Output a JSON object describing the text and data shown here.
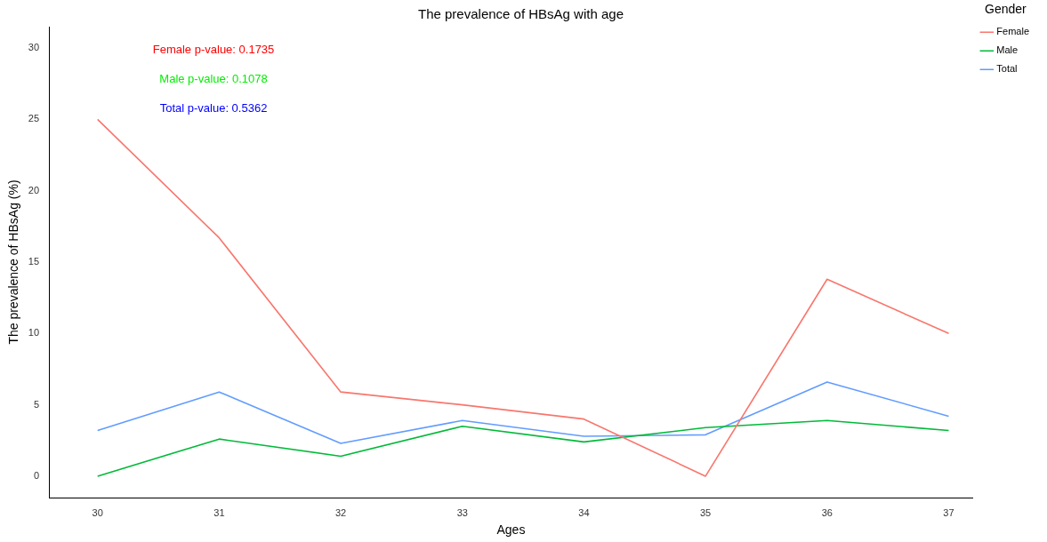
{
  "chart_data": {
    "type": "line",
    "title": "The prevalence of HBsAg with age",
    "xlabel": "Ages",
    "ylabel": "The prevalence of HBsAg (%)",
    "legend_title": "Gender",
    "x": [
      30,
      31,
      32,
      33,
      34,
      35,
      36,
      37
    ],
    "series": [
      {
        "name": "Female",
        "color": "#f8766d",
        "values": [
          25,
          16.7,
          5.9,
          5.0,
          4.0,
          0,
          13.8,
          10.0
        ]
      },
      {
        "name": "Male",
        "color": "#00ba38",
        "values": [
          0,
          2.6,
          1.4,
          3.5,
          2.4,
          3.4,
          3.9,
          3.2
        ]
      },
      {
        "name": "Total",
        "color": "#619cff",
        "values": [
          3.2,
          5.9,
          2.3,
          3.9,
          2.8,
          2.9,
          6.6,
          4.2
        ]
      }
    ],
    "xlim": [
      29.6,
      37.2
    ],
    "xticks": [
      30,
      31,
      32,
      33,
      34,
      35,
      36,
      37
    ],
    "ylim": [
      -1.5,
      31.5
    ],
    "yticks": [
      0,
      5,
      10,
      15,
      20,
      25,
      30
    ],
    "annotations": [
      "Female p-value: 0.1735",
      "Male p-value: 0.1078",
      "Total p-value: 0.5362"
    ],
    "grid": false,
    "legend": "top right",
    "marker": "none",
    "line_style": "solid"
  }
}
